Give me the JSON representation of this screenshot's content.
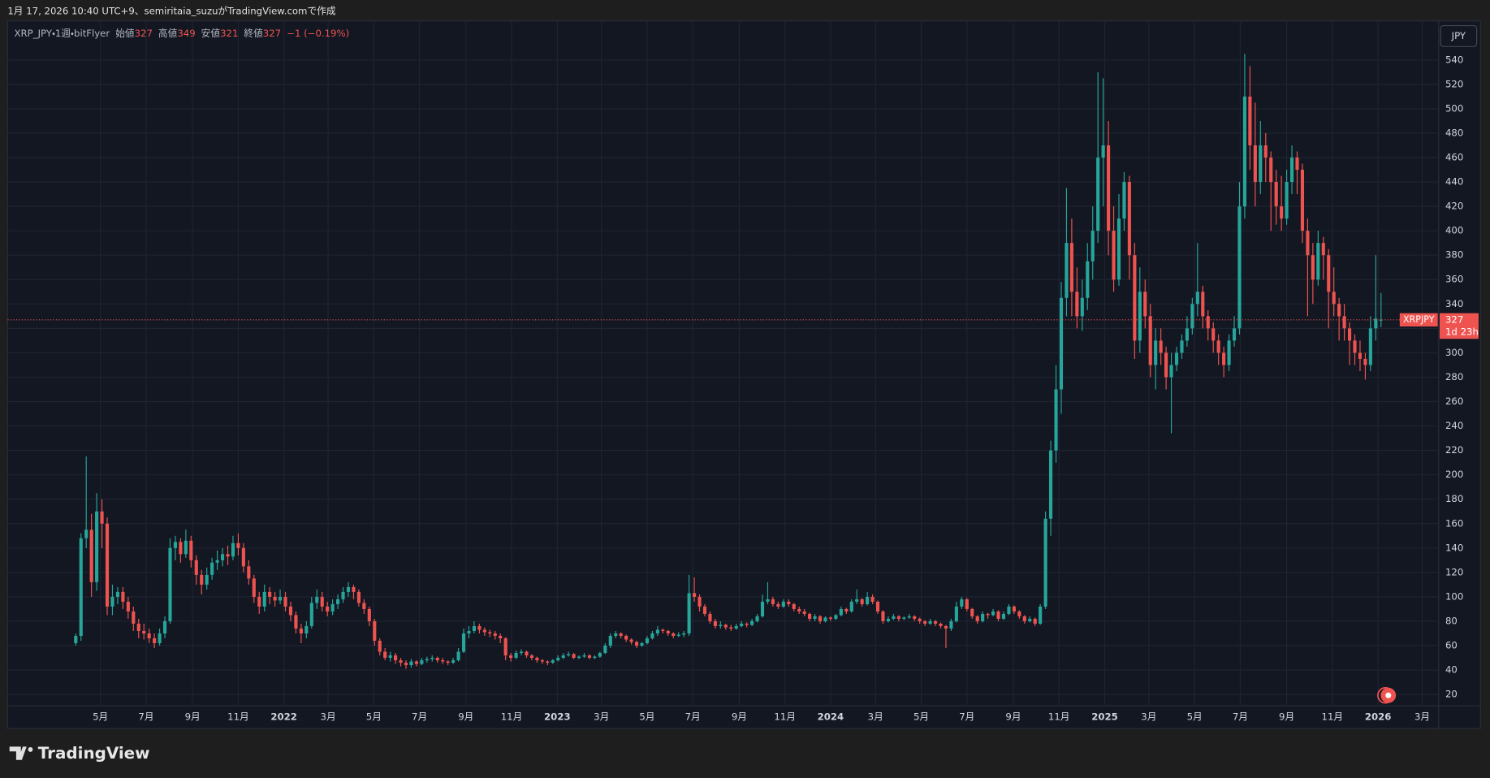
{
  "page": {
    "credit": "1月 17, 2026 10:40 UTC+9、semiritaia_suzuがTradingView.comで作成",
    "logo": "TradingView"
  },
  "chart_data": {
    "type": "candlestick",
    "header": {
      "symbol": "XRP_JPY・1週・bitFlyer",
      "fields": [
        {
          "label": "始値",
          "value": 327
        },
        {
          "label": "高値",
          "value": 349
        },
        {
          "label": "安値",
          "value": 321
        },
        {
          "label": "終値",
          "value": 327
        }
      ],
      "change": "−1 (−0.19%)"
    },
    "currency": "JPY",
    "price_tag": {
      "symbol": "XRPJPY",
      "value": 327,
      "countdown": "1d 23h"
    },
    "up_color": "#26a69a",
    "down_color": "#ef5350",
    "grid": true,
    "xlim": [
      -13,
      260
    ],
    "xticks": [
      {
        "value": 4.71,
        "label": "5月"
      },
      {
        "value": 13.43,
        "label": "7月"
      },
      {
        "value": 22.29,
        "label": "9月"
      },
      {
        "value": 31.0,
        "label": "11月"
      },
      {
        "value": 39.71,
        "label": "2022"
      },
      {
        "value": 48.14,
        "label": "3月"
      },
      {
        "value": 56.86,
        "label": "5月"
      },
      {
        "value": 65.57,
        "label": "7月"
      },
      {
        "value": 74.43,
        "label": "9月"
      },
      {
        "value": 83.14,
        "label": "11月"
      },
      {
        "value": 91.86,
        "label": "2023"
      },
      {
        "value": 100.29,
        "label": "3月"
      },
      {
        "value": 109.0,
        "label": "5月"
      },
      {
        "value": 117.71,
        "label": "7月"
      },
      {
        "value": 126.57,
        "label": "9月"
      },
      {
        "value": 135.29,
        "label": "11月"
      },
      {
        "value": 144.0,
        "label": "2024"
      },
      {
        "value": 152.57,
        "label": "3月"
      },
      {
        "value": 161.29,
        "label": "5月"
      },
      {
        "value": 170.0,
        "label": "7月"
      },
      {
        "value": 178.86,
        "label": "9月"
      },
      {
        "value": 187.57,
        "label": "11月"
      },
      {
        "value": 196.29,
        "label": "2025"
      },
      {
        "value": 204.71,
        "label": "3月"
      },
      {
        "value": 213.43,
        "label": "5月"
      },
      {
        "value": 222.14,
        "label": "7月"
      },
      {
        "value": 231.0,
        "label": "9月"
      },
      {
        "value": 239.71,
        "label": "11月"
      },
      {
        "value": 248.43,
        "label": "2026"
      },
      {
        "value": 256.86,
        "label": "3月"
      }
    ],
    "ylim": [
      -8,
      572
    ],
    "yticks": [
      20,
      40,
      60,
      80,
      100,
      120,
      140,
      160,
      180,
      200,
      220,
      240,
      260,
      280,
      300,
      320,
      340,
      360,
      380,
      400,
      420,
      440,
      460,
      480,
      500,
      520,
      540
    ],
    "ohlc": [
      [
        62,
        70,
        60,
        68
      ],
      [
        68,
        152,
        64,
        148
      ],
      [
        148,
        215,
        140,
        155
      ],
      [
        155,
        168,
        100,
        112
      ],
      [
        112,
        185,
        105,
        170
      ],
      [
        170,
        180,
        140,
        160
      ],
      [
        160,
        165,
        85,
        92
      ],
      [
        92,
        110,
        85,
        100
      ],
      [
        100,
        108,
        94,
        104
      ],
      [
        104,
        108,
        90,
        96
      ],
      [
        96,
        100,
        82,
        88
      ],
      [
        88,
        92,
        72,
        78
      ],
      [
        78,
        82,
        66,
        72
      ],
      [
        72,
        78,
        65,
        70
      ],
      [
        70,
        74,
        62,
        66
      ],
      [
        66,
        70,
        58,
        62
      ],
      [
        62,
        74,
        60,
        70
      ],
      [
        70,
        84,
        66,
        80
      ],
      [
        80,
        148,
        78,
        140
      ],
      [
        140,
        150,
        130,
        145
      ],
      [
        145,
        148,
        128,
        135
      ],
      [
        135,
        155,
        132,
        146
      ],
      [
        146,
        150,
        124,
        130
      ],
      [
        130,
        134,
        110,
        118
      ],
      [
        118,
        122,
        102,
        110
      ],
      [
        110,
        124,
        106,
        118
      ],
      [
        118,
        132,
        114,
        128
      ],
      [
        128,
        138,
        122,
        130
      ],
      [
        130,
        140,
        125,
        135
      ],
      [
        135,
        142,
        126,
        133
      ],
      [
        133,
        150,
        130,
        144
      ],
      [
        144,
        152,
        134,
        140
      ],
      [
        140,
        144,
        120,
        125
      ],
      [
        125,
        130,
        110,
        115
      ],
      [
        115,
        118,
        95,
        100
      ],
      [
        100,
        104,
        86,
        92
      ],
      [
        92,
        110,
        88,
        104
      ],
      [
        104,
        108,
        94,
        100
      ],
      [
        100,
        104,
        92,
        97
      ],
      [
        97,
        106,
        94,
        100
      ],
      [
        100,
        104,
        88,
        92
      ],
      [
        92,
        96,
        80,
        85
      ],
      [
        85,
        88,
        70,
        74
      ],
      [
        74,
        78,
        62,
        70
      ],
      [
        70,
        80,
        66,
        76
      ],
      [
        76,
        100,
        74,
        95
      ],
      [
        95,
        106,
        90,
        100
      ],
      [
        100,
        104,
        88,
        92
      ],
      [
        92,
        96,
        84,
        88
      ],
      [
        88,
        98,
        85,
        94
      ],
      [
        94,
        102,
        90,
        98
      ],
      [
        98,
        108,
        95,
        104
      ],
      [
        104,
        112,
        100,
        108
      ],
      [
        108,
        110,
        98,
        104
      ],
      [
        104,
        106,
        92,
        95
      ],
      [
        95,
        98,
        86,
        90
      ],
      [
        90,
        92,
        76,
        80
      ],
      [
        80,
        82,
        60,
        64
      ],
      [
        64,
        66,
        52,
        55
      ],
      [
        55,
        58,
        48,
        50
      ],
      [
        50,
        55,
        47,
        52
      ],
      [
        52,
        54,
        45,
        48
      ],
      [
        48,
        50,
        43,
        46
      ],
      [
        46,
        48,
        41,
        44
      ],
      [
        44,
        49,
        42,
        47
      ],
      [
        47,
        48,
        43,
        45
      ],
      [
        45,
        50,
        44,
        48
      ],
      [
        48,
        51,
        46,
        49
      ],
      [
        49,
        52,
        47,
        50
      ],
      [
        50,
        51,
        46,
        48
      ],
      [
        48,
        50,
        45,
        47
      ],
      [
        47,
        48,
        44,
        46
      ],
      [
        46,
        50,
        45,
        48
      ],
      [
        48,
        58,
        47,
        55
      ],
      [
        55,
        74,
        54,
        70
      ],
      [
        70,
        76,
        66,
        72
      ],
      [
        72,
        80,
        70,
        76
      ],
      [
        76,
        78,
        70,
        73
      ],
      [
        73,
        75,
        68,
        71
      ],
      [
        71,
        73,
        67,
        70
      ],
      [
        70,
        72,
        65,
        68
      ],
      [
        68,
        70,
        62,
        66
      ],
      [
        66,
        67,
        48,
        52
      ],
      [
        52,
        54,
        47,
        50
      ],
      [
        50,
        56,
        49,
        54
      ],
      [
        54,
        57,
        52,
        55
      ],
      [
        55,
        56,
        50,
        52
      ],
      [
        52,
        53,
        48,
        50
      ],
      [
        50,
        51,
        46,
        48
      ],
      [
        48,
        49,
        45,
        47
      ],
      [
        47,
        48,
        44,
        46
      ],
      [
        46,
        49,
        45,
        48
      ],
      [
        48,
        52,
        47,
        50
      ],
      [
        50,
        54,
        49,
        52
      ],
      [
        52,
        55,
        51,
        53
      ],
      [
        53,
        54,
        49,
        50
      ],
      [
        50,
        52,
        49,
        51
      ],
      [
        51,
        54,
        50,
        52
      ],
      [
        52,
        53,
        49,
        50
      ],
      [
        50,
        52,
        49,
        51
      ],
      [
        51,
        55,
        50,
        54
      ],
      [
        54,
        62,
        53,
        60
      ],
      [
        60,
        70,
        58,
        68
      ],
      [
        68,
        72,
        66,
        70
      ],
      [
        70,
        71,
        66,
        68
      ],
      [
        68,
        69,
        63,
        65
      ],
      [
        65,
        66,
        61,
        63
      ],
      [
        63,
        64,
        58,
        60
      ],
      [
        60,
        63,
        59,
        62
      ],
      [
        62,
        68,
        61,
        66
      ],
      [
        66,
        72,
        65,
        70
      ],
      [
        70,
        76,
        68,
        73
      ],
      [
        73,
        74,
        70,
        72
      ],
      [
        72,
        73,
        68,
        70
      ],
      [
        70,
        71,
        66,
        68
      ],
      [
        68,
        71,
        67,
        69
      ],
      [
        69,
        72,
        67,
        70
      ],
      [
        70,
        118,
        68,
        103
      ],
      [
        103,
        116,
        96,
        100
      ],
      [
        100,
        102,
        88,
        92
      ],
      [
        92,
        94,
        84,
        86
      ],
      [
        86,
        88,
        78,
        80
      ],
      [
        80,
        82,
        74,
        76
      ],
      [
        76,
        80,
        74,
        77
      ],
      [
        77,
        78,
        73,
        75
      ],
      [
        75,
        77,
        72,
        74
      ],
      [
        74,
        78,
        73,
        76
      ],
      [
        76,
        80,
        75,
        78
      ],
      [
        78,
        79,
        75,
        77
      ],
      [
        77,
        82,
        76,
        80
      ],
      [
        80,
        86,
        79,
        84
      ],
      [
        84,
        102,
        83,
        96
      ],
      [
        96,
        112,
        94,
        98
      ],
      [
        98,
        100,
        92,
        94
      ],
      [
        94,
        96,
        90,
        92
      ],
      [
        92,
        98,
        91,
        96
      ],
      [
        96,
        98,
        92,
        94
      ],
      [
        94,
        95,
        88,
        90
      ],
      [
        90,
        92,
        86,
        88
      ],
      [
        88,
        90,
        84,
        86
      ],
      [
        86,
        87,
        80,
        82
      ],
      [
        82,
        86,
        80,
        84
      ],
      [
        84,
        85,
        78,
        80
      ],
      [
        80,
        84,
        79,
        83
      ],
      [
        83,
        84,
        80,
        82
      ],
      [
        82,
        86,
        81,
        85
      ],
      [
        85,
        92,
        84,
        90
      ],
      [
        90,
        91,
        86,
        88
      ],
      [
        88,
        98,
        87,
        96
      ],
      [
        96,
        106,
        94,
        98
      ],
      [
        98,
        99,
        92,
        94
      ],
      [
        94,
        104,
        93,
        100
      ],
      [
        100,
        102,
        94,
        96
      ],
      [
        96,
        97,
        86,
        88
      ],
      [
        88,
        89,
        78,
        80
      ],
      [
        80,
        84,
        79,
        82
      ],
      [
        82,
        86,
        81,
        84
      ],
      [
        84,
        85,
        80,
        82
      ],
      [
        82,
        84,
        81,
        83
      ],
      [
        83,
        86,
        82,
        84
      ],
      [
        84,
        85,
        80,
        82
      ],
      [
        82,
        83,
        78,
        80
      ],
      [
        80,
        81,
        76,
        78
      ],
      [
        78,
        82,
        77,
        80
      ],
      [
        80,
        81,
        76,
        78
      ],
      [
        78,
        79,
        74,
        76
      ],
      [
        76,
        77,
        58,
        74
      ],
      [
        74,
        82,
        72,
        80
      ],
      [
        80,
        96,
        79,
        92
      ],
      [
        92,
        100,
        90,
        98
      ],
      [
        98,
        99,
        88,
        90
      ],
      [
        90,
        91,
        82,
        84
      ],
      [
        84,
        85,
        78,
        80
      ],
      [
        80,
        88,
        79,
        86
      ],
      [
        86,
        87,
        82,
        85
      ],
      [
        85,
        90,
        84,
        88
      ],
      [
        88,
        89,
        80,
        82
      ],
      [
        82,
        88,
        81,
        86
      ],
      [
        86,
        94,
        85,
        92
      ],
      [
        92,
        93,
        86,
        88
      ],
      [
        88,
        89,
        82,
        84
      ],
      [
        84,
        85,
        78,
        80
      ],
      [
        80,
        84,
        79,
        82
      ],
      [
        82,
        83,
        76,
        78
      ],
      [
        78,
        94,
        77,
        92
      ],
      [
        92,
        170,
        90,
        164
      ],
      [
        164,
        228,
        150,
        220
      ],
      [
        220,
        290,
        210,
        270
      ],
      [
        270,
        358,
        250,
        345
      ],
      [
        345,
        435,
        330,
        390
      ],
      [
        390,
        410,
        330,
        350
      ],
      [
        350,
        370,
        320,
        330
      ],
      [
        330,
        360,
        318,
        345
      ],
      [
        345,
        390,
        335,
        375
      ],
      [
        375,
        420,
        360,
        400
      ],
      [
        400,
        530,
        390,
        460
      ],
      [
        460,
        525,
        420,
        470
      ],
      [
        470,
        490,
        380,
        400
      ],
      [
        400,
        420,
        350,
        360
      ],
      [
        360,
        430,
        355,
        410
      ],
      [
        410,
        448,
        400,
        440
      ],
      [
        440,
        445,
        360,
        380
      ],
      [
        380,
        390,
        295,
        310
      ],
      [
        310,
        370,
        300,
        350
      ],
      [
        350,
        360,
        320,
        330
      ],
      [
        330,
        340,
        280,
        290
      ],
      [
        290,
        320,
        270,
        310
      ],
      [
        310,
        320,
        290,
        300
      ],
      [
        300,
        305,
        270,
        280
      ],
      [
        280,
        300,
        234,
        290
      ],
      [
        290,
        305,
        285,
        300
      ],
      [
        300,
        315,
        295,
        310
      ],
      [
        310,
        330,
        305,
        320
      ],
      [
        320,
        345,
        315,
        340
      ],
      [
        340,
        390,
        330,
        350
      ],
      [
        350,
        355,
        320,
        330
      ],
      [
        330,
        335,
        310,
        320
      ],
      [
        320,
        325,
        300,
        310
      ],
      [
        310,
        315,
        290,
        300
      ],
      [
        300,
        305,
        280,
        290
      ],
      [
        290,
        315,
        285,
        310
      ],
      [
        310,
        330,
        305,
        320
      ],
      [
        320,
        440,
        315,
        420
      ],
      [
        420,
        545,
        410,
        510
      ],
      [
        510,
        535,
        450,
        470
      ],
      [
        470,
        505,
        420,
        440
      ],
      [
        440,
        490,
        430,
        470
      ],
      [
        470,
        480,
        440,
        460
      ],
      [
        460,
        465,
        400,
        440
      ],
      [
        440,
        450,
        405,
        420
      ],
      [
        420,
        445,
        400,
        410
      ],
      [
        410,
        450,
        405,
        440
      ],
      [
        440,
        470,
        430,
        460
      ],
      [
        460,
        465,
        430,
        450
      ],
      [
        450,
        455,
        390,
        400
      ],
      [
        400,
        410,
        330,
        380
      ],
      [
        380,
        390,
        340,
        360
      ],
      [
        360,
        400,
        355,
        390
      ],
      [
        390,
        395,
        360,
        380
      ],
      [
        380,
        385,
        320,
        350
      ],
      [
        350,
        370,
        330,
        340
      ],
      [
        340,
        345,
        310,
        330
      ],
      [
        330,
        340,
        310,
        320
      ],
      [
        320,
        325,
        290,
        310
      ],
      [
        310,
        315,
        290,
        300
      ],
      [
        300,
        310,
        285,
        295
      ],
      [
        295,
        300,
        278,
        290
      ],
      [
        290,
        330,
        285,
        320
      ],
      [
        320,
        380,
        310,
        328
      ],
      [
        327,
        349,
        321,
        327
      ]
    ]
  }
}
